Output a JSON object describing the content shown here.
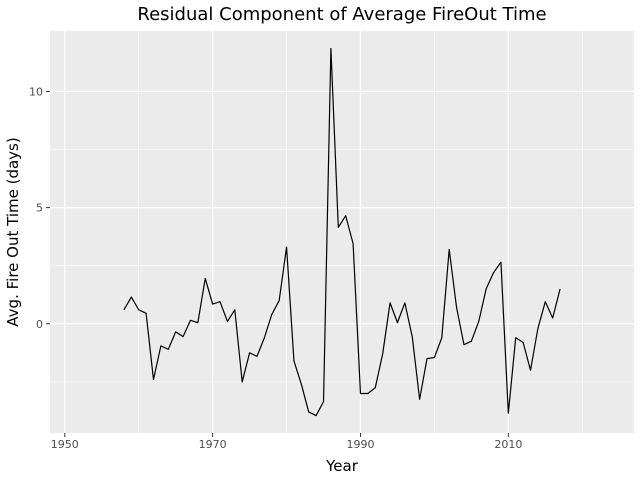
{
  "chart_data": {
    "type": "line",
    "title": "Residual Component of Average FireOut Time",
    "xlabel": "Year",
    "ylabel": "Avg. Fire Out Time (days)",
    "xlim": [
      1948,
      2027
    ],
    "ylim": [
      -4.7,
      12.6
    ],
    "x_ticks": [
      1950,
      1970,
      1990,
      2010
    ],
    "x_minor_ticks": [
      1960,
      1980,
      2000,
      2020
    ],
    "y_ticks": [
      0,
      5,
      10
    ],
    "y_minor_ticks": [
      -2.5,
      2.5,
      7.5
    ],
    "grid": true,
    "legend": "none",
    "colors": {
      "panel": "#ebebeb",
      "grid": "#ffffff",
      "line": "#000000",
      "tick_text": "#4d4d4d"
    },
    "series": [
      {
        "x": [
          1958,
          1959,
          1960,
          1961,
          1962,
          1963,
          1964,
          1965,
          1966,
          1967,
          1968,
          1969,
          1970,
          1971,
          1972,
          1973,
          1974,
          1975,
          1976,
          1977,
          1978,
          1979,
          1980,
          1981,
          1982,
          1983,
          1984,
          1985,
          1986,
          1987,
          1988,
          1989,
          1990,
          1991,
          1992,
          1993,
          1994,
          1995,
          1996,
          1997,
          1998,
          1999,
          2000,
          2001,
          2002,
          2003,
          2004,
          2005,
          2006,
          2007,
          2008,
          2009,
          2010,
          2011,
          2012,
          2013,
          2014,
          2015,
          2016,
          2017
        ],
        "y": [
          0.6,
          1.15,
          0.6,
          0.45,
          -2.4,
          -0.95,
          -1.1,
          -0.35,
          -0.55,
          0.15,
          0.05,
          1.95,
          0.85,
          0.95,
          0.1,
          0.6,
          -2.5,
          -1.25,
          -1.4,
          -0.6,
          0.4,
          1.0,
          3.3,
          -1.6,
          -2.6,
          -3.8,
          -3.95,
          -3.35,
          11.85,
          4.15,
          4.65,
          3.45,
          -3.0,
          -3.0,
          -2.75,
          -1.3,
          0.9,
          0.05,
          0.9,
          -0.55,
          -3.25,
          -1.5,
          -1.45,
          -0.6,
          3.2,
          0.7,
          -0.9,
          -0.75,
          0.1,
          1.5,
          2.2,
          2.65,
          -3.85,
          -0.6,
          -0.8,
          -2.0,
          -0.2,
          0.95,
          0.25,
          1.5
        ]
      }
    ]
  }
}
